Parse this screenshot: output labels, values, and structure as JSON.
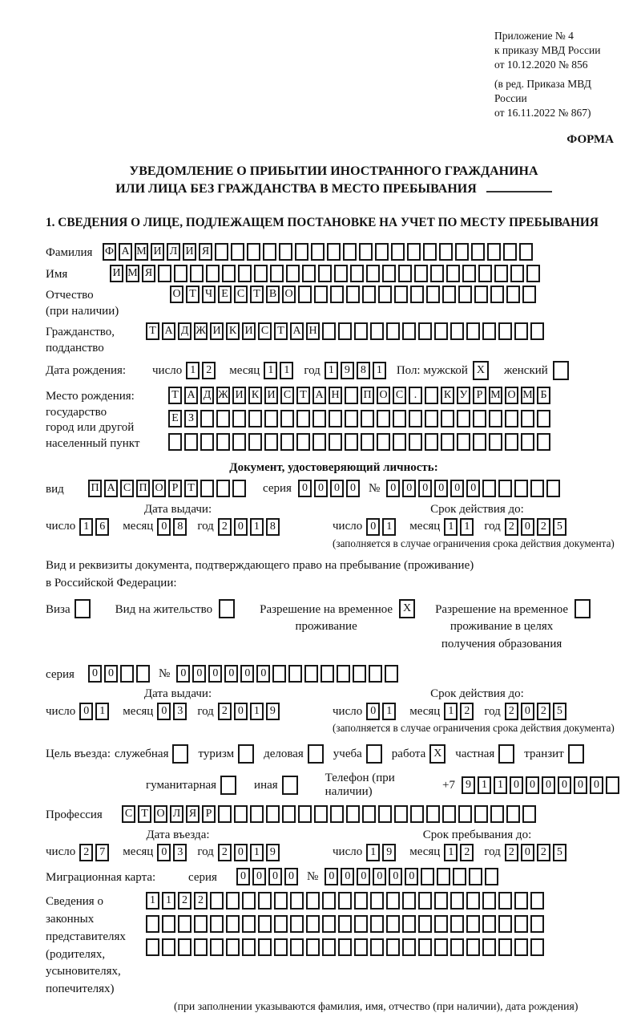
{
  "header": {
    "appendix_lines": [
      "Приложение № 4",
      "к приказу МВД России",
      "от 10.12.2020 № 856"
    ],
    "amendment_lines": [
      "(в ред. Приказа МВД России",
      "от 16.11.2022 № 867)"
    ],
    "forma": "ФОРМА"
  },
  "title": {
    "line1": "УВЕДОМЛЕНИЕ О ПРИБЫТИИ ИНОСТРАННОГО ГРАЖДАНИНА",
    "line2": "ИЛИ ЛИЦА БЕЗ ГРАЖДАНСТВА В МЕСТО ПРЕБЫВАНИЯ"
  },
  "section1": {
    "heading": "1. СВЕДЕНИЯ О ЛИЦЕ, ПОДЛЕЖАЩЕМ ПОСТАНОВКЕ НА УЧЕТ ПО МЕСТУ ПРЕБЫВАНИЯ"
  },
  "labels": {
    "surname": "Фамилия",
    "name": "Имя",
    "patronymic_1": "Отчество",
    "patronymic_2": "(при наличии)",
    "citizenship_1": "Гражданство,",
    "citizenship_2": "подданство",
    "birthdate": "Дата рождения:",
    "day": "число",
    "month": "месяц",
    "year": "год",
    "sex": "Пол: мужской",
    "sex_female": "женский",
    "birthplace_1": "Место рождения:",
    "birthplace_2": "государство",
    "birthplace_3": "город или другой",
    "birthplace_4": "населенный пункт",
    "identity_doc_heading": "Документ, удостоверяющий личность:",
    "doc_type": "вид",
    "series": "серия",
    "number": "№",
    "issue_date": "Дата выдачи:",
    "valid_until": "Срок действия до:",
    "validity_note": "(заполняется в случае ограничения срока действия документа)",
    "residence_intro_1": "Вид и реквизиты документа, подтверждающего право на пребывание (проживание)",
    "residence_intro_2": "в Российской Федерации:",
    "visa": "Виза",
    "residence_permit": "Вид на жительство",
    "rvp_line1": "Разрешение на временное",
    "rvp_line2": "проживание",
    "rvp_edu_line1": "Разрешение на временное",
    "rvp_edu_line2": "проживание в целях",
    "rvp_edu_line3": "получения образования",
    "purpose": "Цель въезда:",
    "p_official": "служебная",
    "p_tourism": "туризм",
    "p_business": "деловая",
    "p_study": "учеба",
    "p_work": "работа",
    "p_private": "частная",
    "p_transit": "транзит",
    "p_humanitarian": "гуманитарная",
    "p_other": "иная",
    "phone": "Телефон (при наличии)",
    "phone_prefix": "+7",
    "profession": "Профессия",
    "entry_date": "Дата въезда:",
    "stay_until": "Срок пребывания до:",
    "migration_card": "Миграционная карта:",
    "legal_reps": "Сведения о законных представителях (родителях, усыновителях, попечителях)",
    "legal_note": "(при заполнении указываются фамилия, имя, отчество (при наличии), дата рождения)"
  },
  "fields": {
    "surname": {
      "chars": "ФАМИЛИЯ",
      "count": 27
    },
    "name": {
      "chars": "ИМЯ",
      "count": 27
    },
    "patronymic": {
      "chars": "ОТЧЕСТВО",
      "count": 23
    },
    "citizenship": {
      "chars": "ТАДЖИКИСТАН",
      "count": 25
    },
    "birth_day": {
      "chars": "12",
      "count": 2
    },
    "birth_month": {
      "chars": "11",
      "count": 2
    },
    "birth_year": {
      "chars": "1981",
      "count": 4
    },
    "birthplace_row1": {
      "chars": "ТАДЖИКИСТАН ПОС. КУРМОМБ",
      "count": 24
    },
    "birthplace_row2": {
      "chars": "ЕЗ",
      "count": 24
    },
    "birthplace_row3": {
      "chars": "",
      "count": 24
    },
    "doc_type": {
      "chars": "ПАСПОРТ",
      "count": 10
    },
    "doc_series": {
      "chars": "0000",
      "count": 4
    },
    "doc_number": {
      "chars": "000000",
      "count": 11
    },
    "doc_issue_day": {
      "chars": "16",
      "count": 2
    },
    "doc_issue_month": {
      "chars": "08",
      "count": 2
    },
    "doc_issue_year": {
      "chars": "2018",
      "count": 4
    },
    "doc_valid_day": {
      "chars": "01",
      "count": 2
    },
    "doc_valid_month": {
      "chars": "11",
      "count": 2
    },
    "doc_valid_year": {
      "chars": "2025",
      "count": 4
    },
    "rvp_series": {
      "chars": "00",
      "count": 4
    },
    "rvp_number": {
      "chars": "000000",
      "count": 14
    },
    "rvp_issue_day": {
      "chars": "01",
      "count": 2
    },
    "rvp_issue_month": {
      "chars": "03",
      "count": 2
    },
    "rvp_issue_year": {
      "chars": "2019",
      "count": 4
    },
    "rvp_valid_day": {
      "chars": "01",
      "count": 2
    },
    "rvp_valid_month": {
      "chars": "12",
      "count": 2
    },
    "rvp_valid_year": {
      "chars": "2025",
      "count": 4
    },
    "phone": {
      "chars": "911000000",
      "count": 10
    },
    "profession": {
      "chars": "СТОЛЯР",
      "count": 26
    },
    "entry_day": {
      "chars": "27",
      "count": 2
    },
    "entry_month": {
      "chars": "03",
      "count": 2
    },
    "entry_year": {
      "chars": "2019",
      "count": 4
    },
    "stay_day": {
      "chars": "19",
      "count": 2
    },
    "stay_month": {
      "chars": "12",
      "count": 2
    },
    "stay_year": {
      "chars": "2025",
      "count": 4
    },
    "mig_series": {
      "chars": "0000",
      "count": 4
    },
    "mig_number": {
      "chars": "000000",
      "count": 11
    },
    "legal_row1": {
      "chars": "1122",
      "count": 25
    },
    "legal_row2": {
      "chars": "",
      "count": 25
    },
    "legal_row3": {
      "chars": "",
      "count": 25
    }
  },
  "marks": {
    "sex_male": "X",
    "sex_female": "",
    "visa": "",
    "residence_permit": "",
    "rvp": "X",
    "rvp_edu": "",
    "p_official": "",
    "p_tourism": "",
    "p_business": "",
    "p_study": "",
    "p_work": "X",
    "p_private": "",
    "p_transit": "",
    "p_humanitarian": "",
    "p_other": ""
  }
}
